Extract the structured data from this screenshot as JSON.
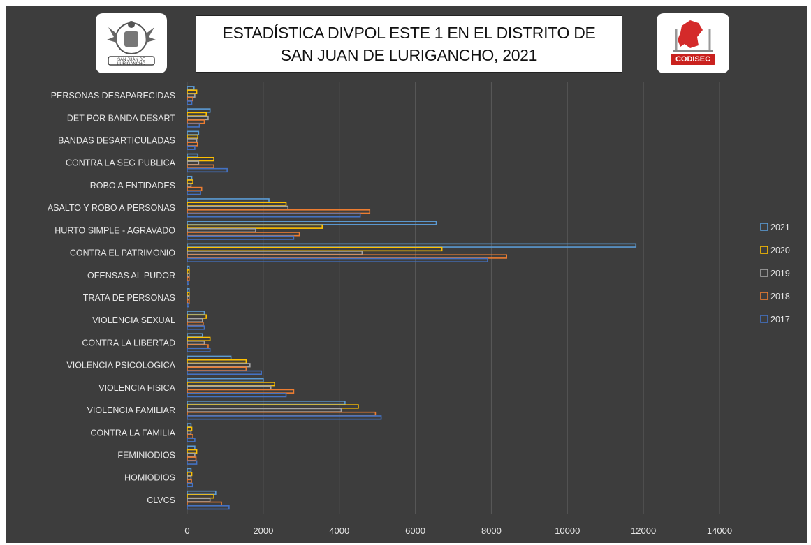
{
  "title": {
    "text": "ESTADÍSTICA DIVPOL ESTE 1 EN EL DISTRITO DE\nSAN JUAN DE LURIGANCHO, 2021"
  },
  "logos": {
    "left": {
      "label": "SAN JUAN DE LURIGANCHO",
      "icon": "municipal-coat-of-arms"
    },
    "right": {
      "label": "CODISEC",
      "icon": "codisec-logo"
    }
  },
  "colors": {
    "background": "#3d3d3d",
    "gridline": "#595959",
    "label": "#e6e6e6",
    "series": {
      "2021": "#5b9bd5",
      "2020": "#ffc000",
      "2019": "#a5a5a5",
      "2018": "#ed7d31",
      "2017": "#4472c4"
    }
  },
  "chart_data": {
    "type": "bar",
    "orientation": "horizontal",
    "categories": [
      "PERSONAS DESAPARECIDAS",
      "DET POR BANDA DESART",
      "BANDAS DESARTICULADAS",
      "CONTRA LA SEG PUBLICA",
      "ROBO A ENTIDADES",
      "ASALTO Y ROBO A PERSONAS",
      "HURTO SIMPLE - AGRAVADO",
      "CONTRA EL PATRIMONIO",
      "OFENSAS AL PUDOR",
      "TRATA DE PERSONAS",
      "VIOLENCIA SEXUAL",
      "CONTRA LA LIBERTAD",
      "VIOLENCIA PSICOLOGICA",
      "VIOLENCIA FISICA",
      "VIOLENCIA FAMILIAR",
      "CONTRA LA FAMILIA",
      "FEMINICIDIOS",
      "HOMICIDIOS",
      "CLVCS"
    ],
    "category_display": [
      "PERSONAS DESAPARECIDAS",
      "DET POR BANDA DESART",
      "BANDAS DESARTICULADAS",
      "CONTRA LA SEG PUBLICA",
      "ROBO A ENTIDADES",
      "ASALTO Y ROBO A PERSONAS",
      "HURTO SIMPLE - AGRAVADO",
      "CONTRA EL PATRIMONIO",
      "OFENSAS AL PUDOR",
      "TRATA DE PERSONAS",
      "VIOLENCIA SEXUAL",
      "CONTRA LA LIBERTAD",
      "VIOLENCIA PSICOLOGICA",
      "VIOLENCIA FISICA",
      "VIOLENCIA FAMILIAR",
      "CONTRA LA FAMILIA",
      "FEMINIODIOS",
      "HOMIODIOS",
      "CLVCS"
    ],
    "series": [
      {
        "name": "2021",
        "values": [
          180,
          600,
          300,
          280,
          120,
          2150,
          6550,
          11800,
          50,
          50,
          450,
          400,
          1150,
          2000,
          4150,
          100,
          200,
          100,
          750
        ]
      },
      {
        "name": "2020",
        "values": [
          250,
          500,
          280,
          700,
          150,
          2600,
          3550,
          6700,
          50,
          50,
          500,
          600,
          1550,
          2300,
          4500,
          120,
          250,
          120,
          700
        ]
      },
      {
        "name": "2019",
        "values": [
          200,
          550,
          250,
          300,
          100,
          2650,
          1800,
          4600,
          50,
          50,
          400,
          450,
          1650,
          2200,
          4050,
          100,
          200,
          100,
          600
        ]
      },
      {
        "name": "2018",
        "values": [
          150,
          450,
          270,
          700,
          380,
          4800,
          2950,
          8400,
          50,
          50,
          420,
          550,
          1550,
          2800,
          4950,
          150,
          230,
          110,
          900
        ]
      },
      {
        "name": "2017",
        "values": [
          120,
          320,
          200,
          1050,
          350,
          4550,
          2800,
          7900,
          40,
          40,
          450,
          600,
          1950,
          2600,
          5100,
          200,
          250,
          140,
          1100
        ]
      }
    ],
    "legend_order": [
      "2021",
      "2020",
      "2019",
      "2018",
      "2017"
    ],
    "legend_position": "right",
    "xlim": [
      0,
      14000
    ],
    "x_ticks": [
      0,
      2000,
      4000,
      6000,
      8000,
      10000,
      12000,
      14000
    ],
    "x_tick_labels": [
      "0",
      "2000",
      "4000",
      "6000",
      "8000",
      "10000",
      "12000",
      "14000"
    ],
    "grid": true
  }
}
